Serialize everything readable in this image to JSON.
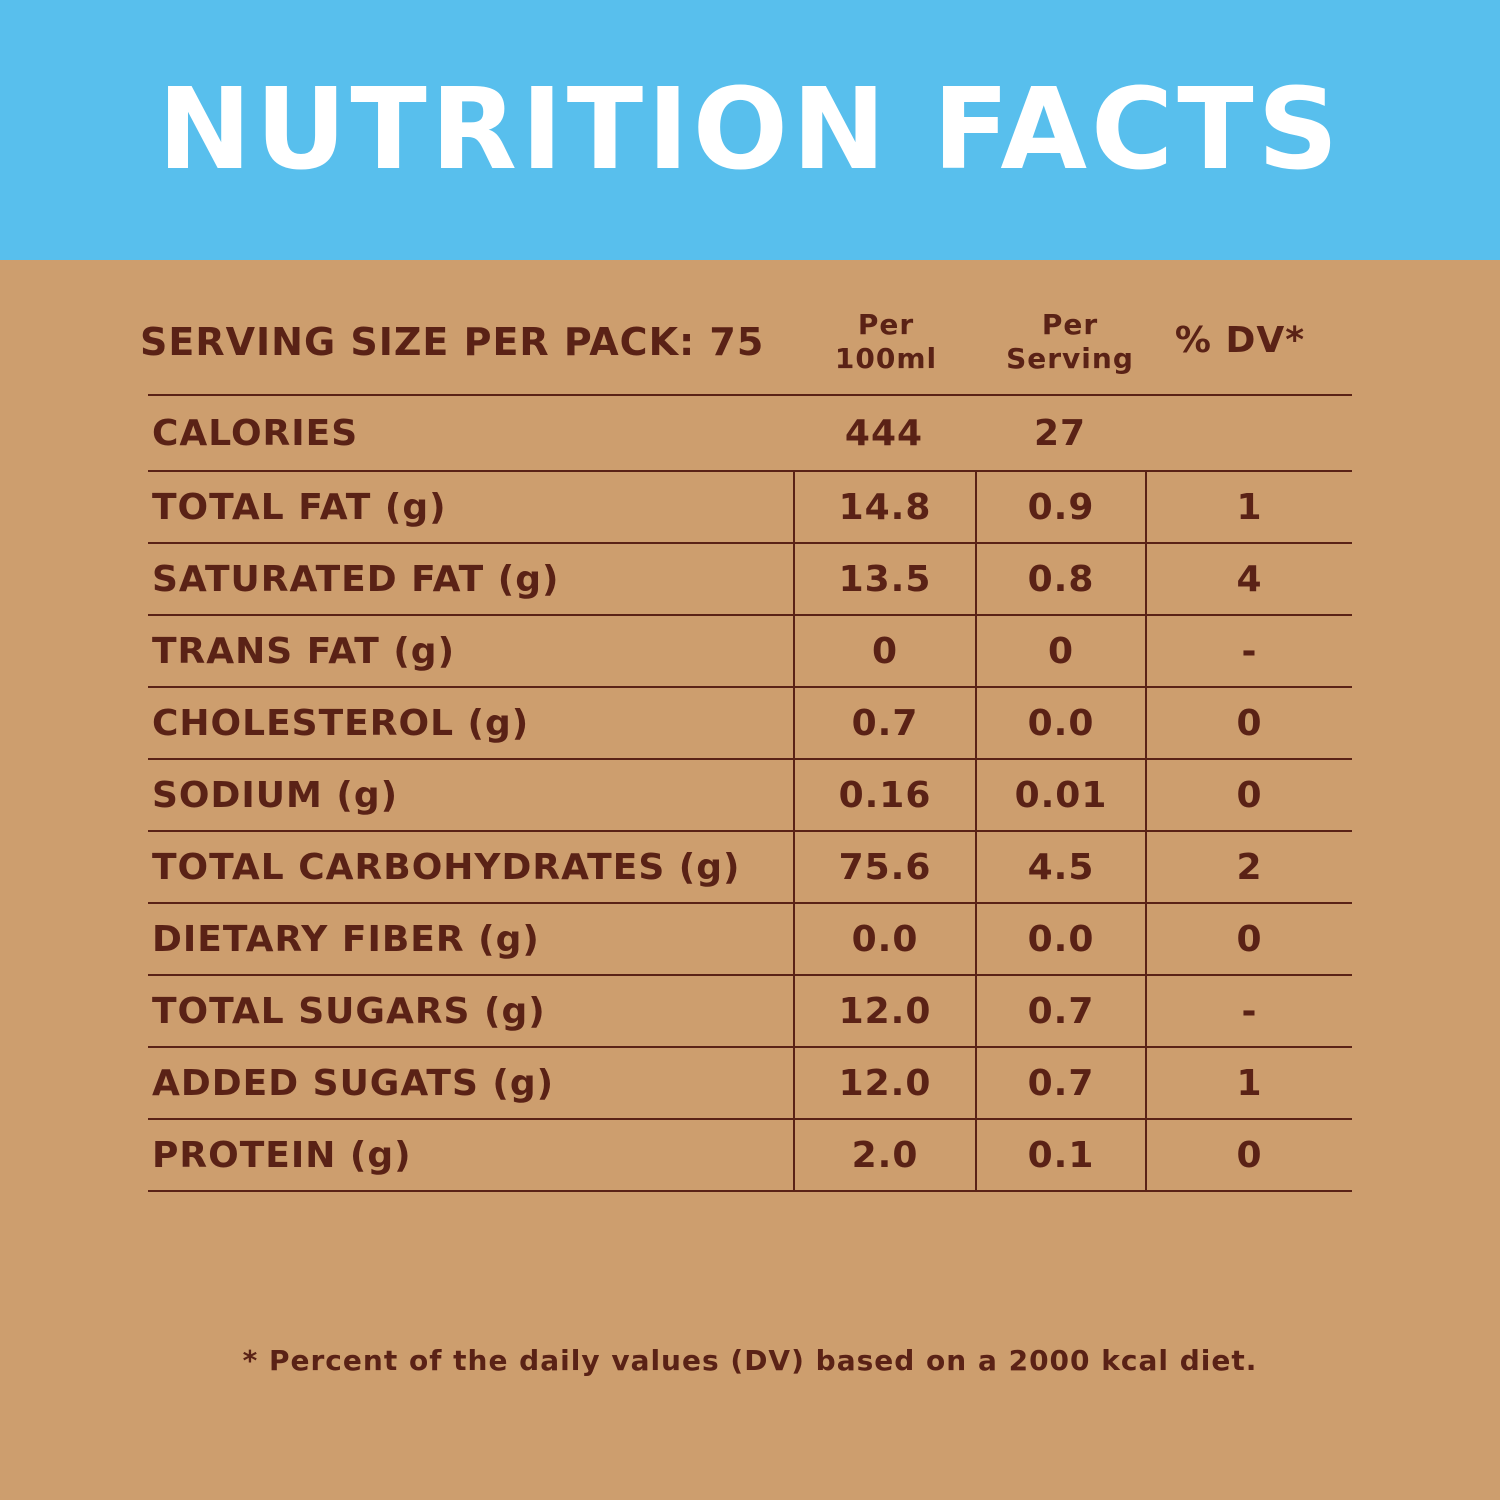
{
  "colors": {
    "header_bg": "#58bfed",
    "panel_bg": "#cd9e6e",
    "text": "#5a2216",
    "rule": "#5a2216"
  },
  "title": "NUTRITION FACTS",
  "serving_label": "SERVING SIZE PER PACK: 75",
  "columns": {
    "per100_line1": "Per",
    "per100_line2": "100ml",
    "perserving_line1": "Per",
    "perserving_line2": "Serving",
    "dv": "% DV*"
  },
  "rows": [
    {
      "name": "CALORIES",
      "per100": "444",
      "perserving": "27",
      "dv": ""
    },
    {
      "name": "TOTAL FAT (g)",
      "per100": "14.8",
      "perserving": "0.9",
      "dv": "1"
    },
    {
      "name": "SATURATED FAT (g)",
      "per100": "13.5",
      "perserving": "0.8",
      "dv": "4"
    },
    {
      "name": "TRANS FAT (g)",
      "per100": "0",
      "perserving": "0",
      "dv": "-"
    },
    {
      "name": "CHOLESTEROL (g)",
      "per100": "0.7",
      "perserving": "0.0",
      "dv": "0"
    },
    {
      "name": "SODIUM (g)",
      "per100": "0.16",
      "perserving": "0.01",
      "dv": "0"
    },
    {
      "name": "TOTAL CARBOHYDRATES (g)",
      "per100": "75.6",
      "perserving": "4.5",
      "dv": "2"
    },
    {
      "name": "DIETARY FIBER (g)",
      "per100": "0.0",
      "perserving": "0.0",
      "dv": "0"
    },
    {
      "name": "TOTAL SUGARS (g)",
      "per100": "12.0",
      "perserving": "0.7",
      "dv": "-"
    },
    {
      "name": "ADDED SUGATS (g)",
      "per100": "12.0",
      "perserving": "0.7",
      "dv": "1"
    },
    {
      "name": "PROTEIN (g)",
      "per100": "2.0",
      "perserving": "0.1",
      "dv": "0"
    }
  ],
  "footnote": "* Percent of the daily values (DV) based on a 2000 kcal diet."
}
